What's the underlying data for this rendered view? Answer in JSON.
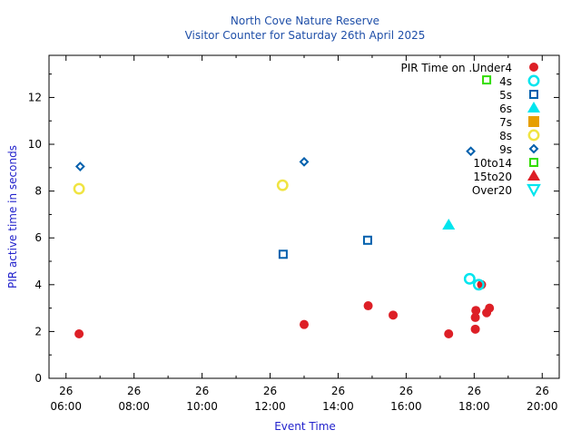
{
  "chart_data": {
    "type": "scatter",
    "title": "North Cove Nature Reserve",
    "subtitle": "Visitor Counter for Saturday 26th April 2025",
    "xlabel": "Event Time",
    "ylabel": "PIR active time in seconds",
    "xlim": [
      "05:30",
      "20:30"
    ],
    "ylim": [
      0,
      13.8
    ],
    "x_ticks": [
      {
        "day": "26",
        "time": "06:00"
      },
      {
        "day": "26",
        "time": "08:00"
      },
      {
        "day": "26",
        "time": "10:00"
      },
      {
        "day": "26",
        "time": "12:00"
      },
      {
        "day": "26",
        "time": "14:00"
      },
      {
        "day": "26",
        "time": "16:00"
      },
      {
        "day": "26",
        "time": "18:00"
      },
      {
        "day": "26",
        "time": "20:00"
      }
    ],
    "y_ticks": [
      0,
      2,
      4,
      6,
      8,
      10,
      12
    ],
    "grid": false,
    "legend": {
      "position": "top-right",
      "title": "PIR Time on .."
    },
    "series": [
      {
        "name": "Under4",
        "marker": "filled-circle",
        "color": "#dd1f26",
        "points": [
          {
            "x": "06:23",
            "y": 1.9
          },
          {
            "x": "13:00",
            "y": 2.3
          },
          {
            "x": "14:53",
            "y": 3.1
          },
          {
            "x": "15:37",
            "y": 2.7
          },
          {
            "x": "17:15",
            "y": 1.9
          },
          {
            "x": "18:02",
            "y": 2.1
          },
          {
            "x": "18:02",
            "y": 2.6
          },
          {
            "x": "18:03",
            "y": 2.9
          },
          {
            "x": "18:13",
            "y": 4.0
          },
          {
            "x": "18:22",
            "y": 2.8
          },
          {
            "x": "18:27",
            "y": 3.0
          }
        ]
      },
      {
        "name": "4s",
        "marker": "open-circle",
        "color": "#00e5ee",
        "points": [
          {
            "x": "17:52",
            "y": 4.25
          },
          {
            "x": "18:08",
            "y": 4.0
          }
        ]
      },
      {
        "name": "5s",
        "marker": "open-square",
        "color": "#0060ad",
        "points": [
          {
            "x": "12:23",
            "y": 5.3
          },
          {
            "x": "14:52",
            "y": 5.9
          }
        ]
      },
      {
        "name": "6s",
        "marker": "filled-triangle",
        "color": "#00e5ee",
        "points": [
          {
            "x": "17:15",
            "y": 6.55
          }
        ]
      },
      {
        "name": "7s",
        "marker": "filled-square",
        "color": "#e69f00",
        "points": []
      },
      {
        "name": "8s",
        "marker": "open-circle",
        "color": "#f0e442",
        "points": [
          {
            "x": "06:23",
            "y": 8.1
          },
          {
            "x": "12:22",
            "y": 8.25
          }
        ]
      },
      {
        "name": "9s",
        "marker": "open-diamond",
        "color": "#0060ad",
        "points": [
          {
            "x": "06:25",
            "y": 9.05
          },
          {
            "x": "13:00",
            "y": 9.25
          },
          {
            "x": "17:54",
            "y": 9.7
          }
        ]
      },
      {
        "name": "10to14",
        "marker": "open-square",
        "color": "#33dd00",
        "points": [
          {
            "x": "18:22",
            "y": 12.75
          }
        ]
      },
      {
        "name": "15to20",
        "marker": "filled-triangle",
        "color": "#dd1f26",
        "points": []
      },
      {
        "name": "Over20",
        "marker": "open-triangle-down",
        "color": "#00e5ee",
        "points": []
      }
    ]
  }
}
